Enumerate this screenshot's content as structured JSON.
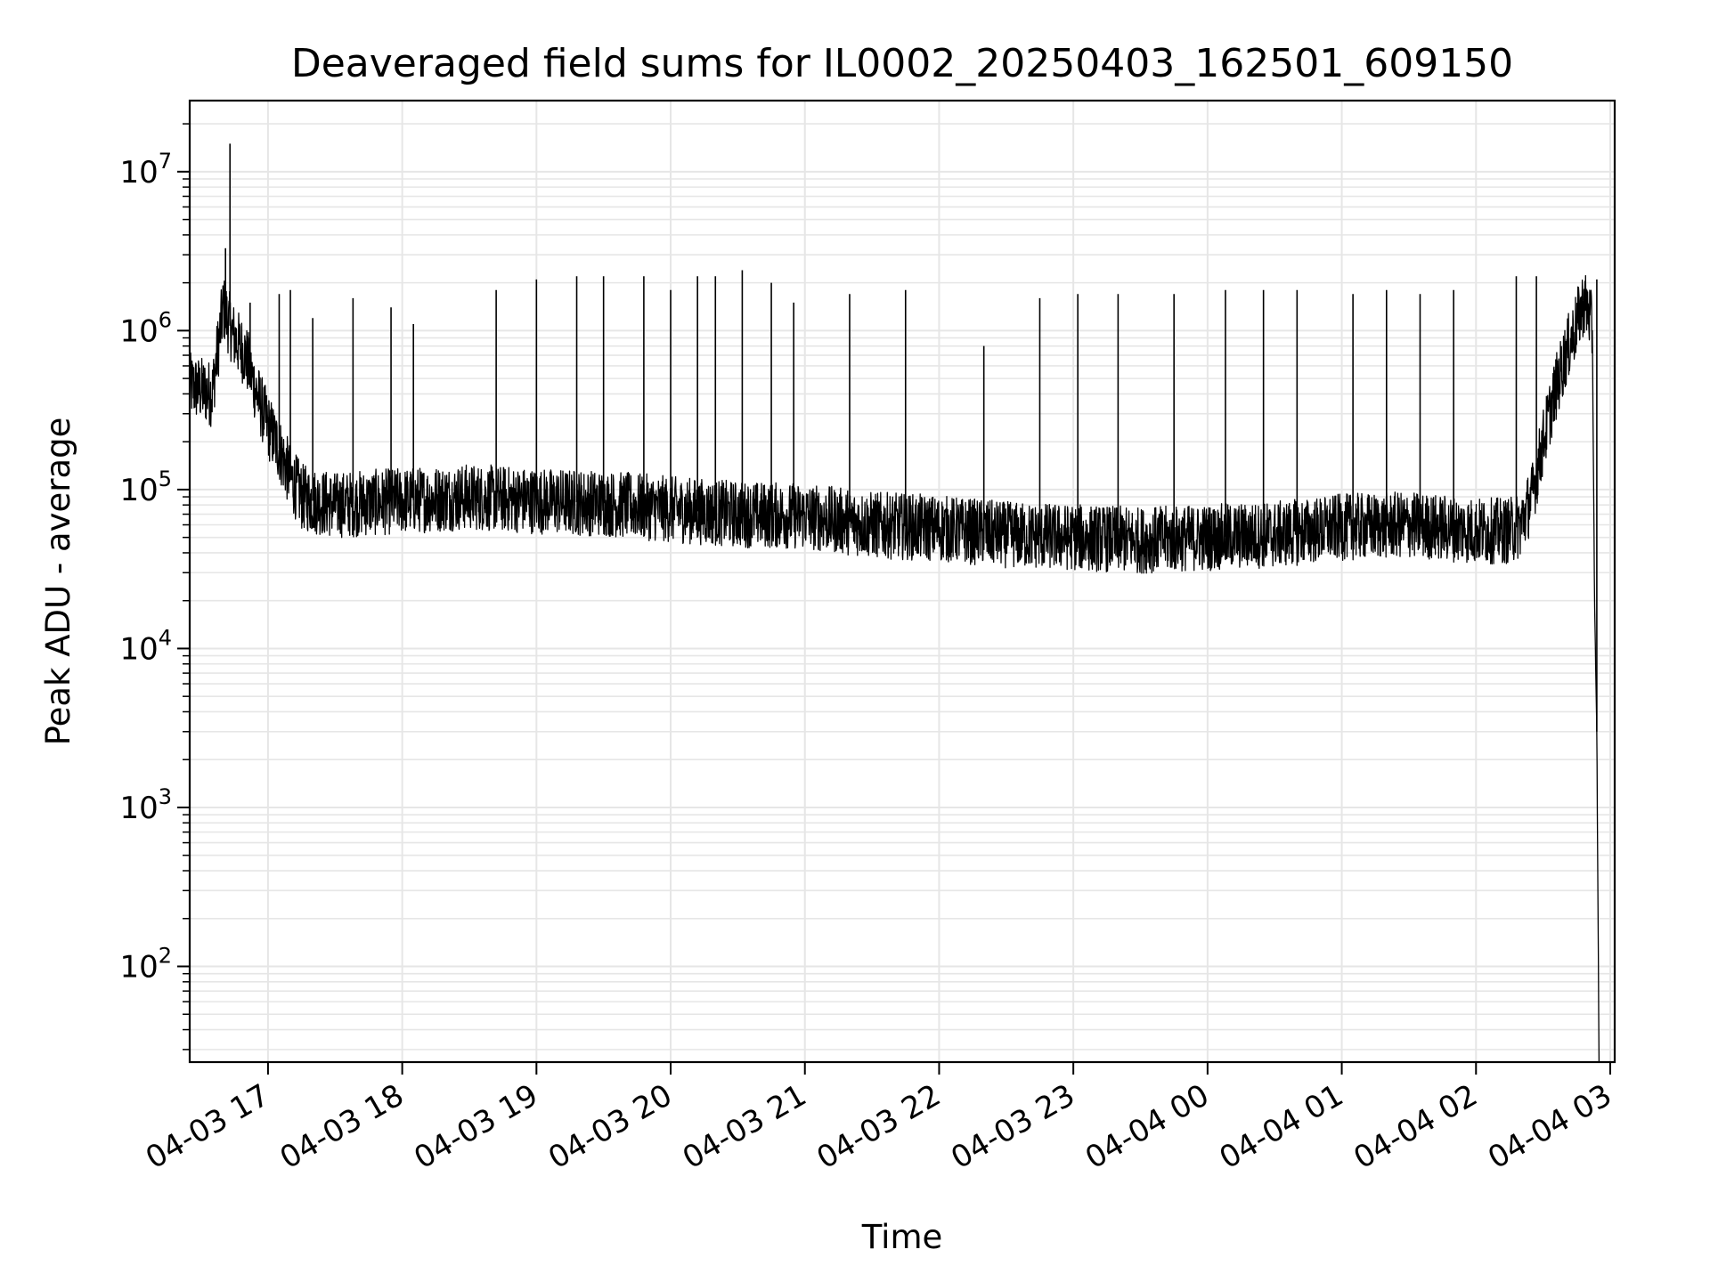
{
  "chart_data": {
    "type": "line",
    "title": "Deaveraged field sums for IL0002_20250403_162501_609150",
    "xlabel": "Time",
    "ylabel": "Peak ADU - average",
    "yscale": "log",
    "ylim": [
      25,
      28000000
    ],
    "xlim": [
      "2025-04-03 16:25",
      "2025-04-04 03:02"
    ],
    "grid": true,
    "line_color": "#000000",
    "x_ticks": [
      {
        "value": "2025-04-03 17:00",
        "label": "04-03 17"
      },
      {
        "value": "2025-04-03 18:00",
        "label": "04-03 18"
      },
      {
        "value": "2025-04-03 19:00",
        "label": "04-03 19"
      },
      {
        "value": "2025-04-03 20:00",
        "label": "04-03 20"
      },
      {
        "value": "2025-04-03 21:00",
        "label": "04-03 21"
      },
      {
        "value": "2025-04-03 22:00",
        "label": "04-03 22"
      },
      {
        "value": "2025-04-03 23:00",
        "label": "04-03 23"
      },
      {
        "value": "2025-04-04 00:00",
        "label": "04-04 00"
      },
      {
        "value": "2025-04-04 01:00",
        "label": "04-04 01"
      },
      {
        "value": "2025-04-04 02:00",
        "label": "04-04 02"
      },
      {
        "value": "2025-04-04 03:00",
        "label": "04-04 03"
      }
    ],
    "y_ticks": [
      {
        "value": 100,
        "base": "10",
        "exp": "2"
      },
      {
        "value": 1000,
        "base": "10",
        "exp": "3"
      },
      {
        "value": 10000,
        "base": "10",
        "exp": "4"
      },
      {
        "value": 100000,
        "base": "10",
        "exp": "5"
      },
      {
        "value": 1000000,
        "base": "10",
        "exp": "6"
      },
      {
        "value": 10000000,
        "base": "10",
        "exp": "7"
      }
    ],
    "series": [
      {
        "x": [
          "2025-04-03 16:25",
          "2025-04-03 16:35",
          "2025-04-03 16:40",
          "2025-04-03 16:45",
          "2025-04-03 16:50",
          "2025-04-03 16:55",
          "2025-04-03 17:00",
          "2025-04-03 17:05",
          "2025-04-03 17:10",
          "2025-04-03 17:15",
          "2025-04-03 17:20",
          "2025-04-03 17:30",
          "2025-04-03 18:00",
          "2025-04-03 18:30",
          "2025-04-03 19:00",
          "2025-04-03 19:30",
          "2025-04-03 20:00",
          "2025-04-03 20:30",
          "2025-04-03 21:00",
          "2025-04-03 21:30",
          "2025-04-03 22:00",
          "2025-04-03 22:30",
          "2025-04-03 23:00",
          "2025-04-03 23:30",
          "2025-04-04 00:00",
          "2025-04-04 00:30",
          "2025-04-04 01:00",
          "2025-04-04 01:30",
          "2025-04-04 02:00",
          "2025-04-04 02:15",
          "2025-04-04 02:20",
          "2025-04-04 02:25",
          "2025-04-04 02:30",
          "2025-04-04 02:35",
          "2025-04-04 02:40",
          "2025-04-04 02:45",
          "2025-04-04 02:48",
          "2025-04-04 02:50",
          "2025-04-04 02:52",
          "2025-04-04 02:53",
          "2025-04-04 02:54",
          "2025-04-04 02:55"
        ],
        "y": [
          450000,
          400000,
          1400000,
          900000,
          700000,
          400000,
          250000,
          180000,
          120000,
          90000,
          85000,
          80000,
          85000,
          90000,
          85000,
          82000,
          75000,
          70000,
          68000,
          60000,
          57000,
          52000,
          50000,
          48000,
          50000,
          52000,
          58000,
          60000,
          55000,
          55000,
          60000,
          90000,
          200000,
          400000,
          700000,
          1100000,
          1500000,
          1400000,
          1000000,
          20000,
          3000,
          25
        ]
      }
    ],
    "spikes": [
      {
        "x": "2025-04-03 16:43",
        "y": 15000000
      },
      {
        "x": "2025-04-03 16:41",
        "y": 3300000
      },
      {
        "x": "2025-04-03 16:52",
        "y": 1500000
      },
      {
        "x": "2025-04-03 17:05",
        "y": 1700000
      },
      {
        "x": "2025-04-03 17:10",
        "y": 1800000
      },
      {
        "x": "2025-04-03 17:20",
        "y": 1200000
      },
      {
        "x": "2025-04-03 17:38",
        "y": 1600000
      },
      {
        "x": "2025-04-03 17:55",
        "y": 1400000
      },
      {
        "x": "2025-04-03 18:05",
        "y": 1100000
      },
      {
        "x": "2025-04-03 18:42",
        "y": 1800000
      },
      {
        "x": "2025-04-03 19:00",
        "y": 2100000
      },
      {
        "x": "2025-04-03 19:18",
        "y": 2200000
      },
      {
        "x": "2025-04-03 19:30",
        "y": 2200000
      },
      {
        "x": "2025-04-03 19:48",
        "y": 2200000
      },
      {
        "x": "2025-04-03 20:00",
        "y": 1800000
      },
      {
        "x": "2025-04-03 20:12",
        "y": 2200000
      },
      {
        "x": "2025-04-03 20:20",
        "y": 2200000
      },
      {
        "x": "2025-04-03 20:32",
        "y": 2400000
      },
      {
        "x": "2025-04-03 20:45",
        "y": 2000000
      },
      {
        "x": "2025-04-03 20:55",
        "y": 1500000
      },
      {
        "x": "2025-04-03 21:20",
        "y": 1700000
      },
      {
        "x": "2025-04-03 21:45",
        "y": 1800000
      },
      {
        "x": "2025-04-03 22:20",
        "y": 800000
      },
      {
        "x": "2025-04-03 22:45",
        "y": 1600000
      },
      {
        "x": "2025-04-03 23:02",
        "y": 1700000
      },
      {
        "x": "2025-04-03 23:20",
        "y": 1700000
      },
      {
        "x": "2025-04-03 23:45",
        "y": 1700000
      },
      {
        "x": "2025-04-04 00:08",
        "y": 1800000
      },
      {
        "x": "2025-04-04 00:25",
        "y": 1800000
      },
      {
        "x": "2025-04-04 00:40",
        "y": 1800000
      },
      {
        "x": "2025-04-04 01:05",
        "y": 1700000
      },
      {
        "x": "2025-04-04 01:20",
        "y": 1800000
      },
      {
        "x": "2025-04-04 01:35",
        "y": 1700000
      },
      {
        "x": "2025-04-04 01:50",
        "y": 1800000
      },
      {
        "x": "2025-04-04 02:18",
        "y": 2200000
      },
      {
        "x": "2025-04-04 02:27",
        "y": 2200000
      },
      {
        "x": "2025-04-04 02:54",
        "y": 2100000
      }
    ]
  }
}
